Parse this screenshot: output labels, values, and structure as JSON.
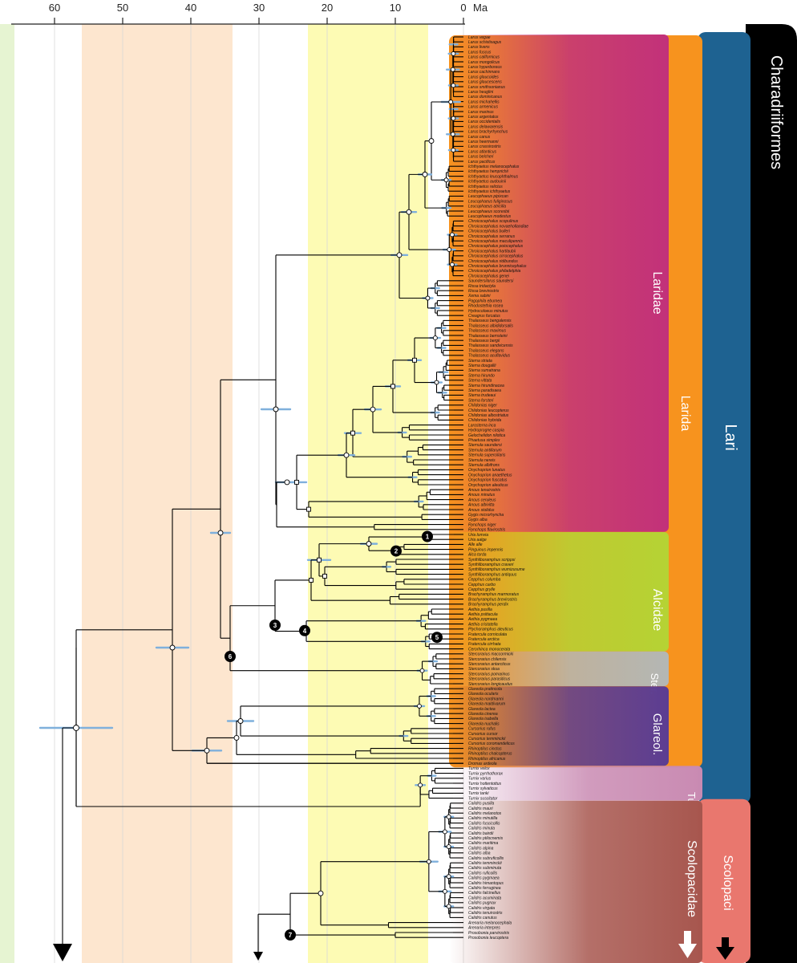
{
  "axis": {
    "unit": "Ma",
    "ticks": [
      "60",
      "50",
      "40",
      "30",
      "20",
      "10",
      "0"
    ]
  },
  "clades": {
    "order": "Charadriiformes",
    "suborders": [
      {
        "name": "Lari",
        "color": "#1e6291"
      },
      {
        "name": "Scolopaci",
        "color": "#e9776e"
      }
    ],
    "infraorders": [
      {
        "name": "Larida",
        "color": "#f7931e"
      }
    ],
    "families": [
      {
        "name": "Laridae",
        "color": "#c2317a"
      },
      {
        "name": "Alcidae",
        "color": "#b5d334"
      },
      {
        "name": "Ster.",
        "color": "#b4b7b4"
      },
      {
        "name": "Glareol.",
        "color": "#5c3d92"
      },
      {
        "name": "Tur.",
        "color": "#c98ab2"
      },
      {
        "name": "Scolopacidae",
        "color": "#a7564e"
      }
    ]
  },
  "nodes": [
    "1",
    "2",
    "3",
    "4",
    "5",
    "6",
    "7"
  ],
  "tips": [
    "Larus vegae",
    "Larus schistisagus",
    "Larus livens",
    "Larus fuscus",
    "Larus californicus",
    "Larus mongolicus",
    "Larus hyperboreus",
    "Larus cachinnans",
    "Larus glaucoides",
    "Larus glaucescens",
    "Larus smithsonianus",
    "Larus heuglini",
    "Larus dominicanus",
    "Larus michahellis",
    "Larus armenicus",
    "Larus marinus",
    "Larus argentatus",
    "Larus occidentalis",
    "Larus delawarensis",
    "Larus brachyrhynchus",
    "Larus canus",
    "Larus heermanni",
    "Larus crassirostris",
    "Larus atlanticus",
    "Larus belcheri",
    "Larus pacificus",
    "Ichthyaetus melanocephalus",
    "Ichthyaetus hemprichii",
    "Ichthyaetus leucophthalmus",
    "Ichthyaetus audouinii",
    "Ichthyaetus relictus",
    "Ichthyaetus ichthyaetus",
    "Leucophaeus pipixcan",
    "Leucophaeus fuliginosus",
    "Leucophaeus atricilla",
    "Leucophaeus scoresbii",
    "Leucophaeus modestus",
    "Chroicocephalus scopulinus",
    "Chroicocephalus novaehollandiae",
    "Chroicocephalus bulleri",
    "Chroicocephalus serranus",
    "Chroicocephalus maculipennis",
    "Chroicocephalus poiocephalus",
    "Chroicocephalus hartlaubii",
    "Chroicocephalus cirrocephalus",
    "Chroicocephalus ridibundus",
    "Chroicocephalus brunnicephalus",
    "Chroicocephalus philadelphia",
    "Chroicocephalus genei",
    "Saundersilarus saundersi",
    "Rissa tridactyla",
    "Rissa brevirostris",
    "Xema sabini",
    "Pagophila eburnea",
    "Rhodostethia rosea",
    "Hydrocoloeus minutus",
    "Creagrus furcatus",
    "Thalasseus bengalensis",
    "Thalasseus albididorsalis",
    "Thalasseus maximus",
    "Thalasseus bernsteini",
    "Thalasseus bergii",
    "Thalasseus sandvicensis",
    "Thalasseus elegans",
    "Thalasseus acuflavidus",
    "Sterna striata",
    "Sterna dougallii",
    "Sterna sumatrana",
    "Sterna hirundo",
    "Sterna vittata",
    "Sterna hirundinacea",
    "Sterna paradisaea",
    "Sterna trudeaui",
    "Sterna forsteri",
    "Chlidonias niger",
    "Chlidonias leucopterus",
    "Chlidonias albostriatus",
    "Chlidonias hybrida",
    "Larosterna inca",
    "Hydroprogne caspia",
    "Gelochelidon nilotica",
    "Phaetusa simplex",
    "Sternula saundersi",
    "Sternula antillarum",
    "Sternula superciliaris",
    "Sternula nereis",
    "Sternula albifrons",
    "Onychoprion lunatus",
    "Onychoprion anaethetus",
    "Onychoprion fuscatus",
    "Onychoprion aleuticus",
    "Anous tenuirostris",
    "Anous minutus",
    "Anous ceruleus",
    "Anous albivitta",
    "Anous stolidus",
    "Gygis microrhyncha",
    "Gygis alba",
    "Rynchops niger",
    "Rynchops flavirostris",
    "Uria lomvia",
    "Uria aalge",
    "Alle alle",
    "Pinguinus impennis",
    "Alca torda",
    "Synthliboramphus scrippsi",
    "Synthliboramphus craveri",
    "Synthliboramphus wumizusume",
    "Synthliboramphus antiquus",
    "Cepphus columba",
    "Cepphus carbo",
    "Cepphus grylle",
    "Brachyramphus marmoratus",
    "Brachyramphus brevirostris",
    "Brachyramphus perdix",
    "Aethia pusilla",
    "Aethia psittacula",
    "Aethia pygmaea",
    "Aethia cristatella",
    "Ptychoramphus aleuticus",
    "Fratercula corniculata",
    "Fratercula arctica",
    "Fratercula cirrhata",
    "Cerorhinca monocerata",
    "Stercorarius maccormicki",
    "Stercorarius chilensis",
    "Stercorarius antarcticus",
    "Stercorarius skua",
    "Stercorarius pomarinus",
    "Stercorarius parasiticus",
    "Stercorarius longicaudus",
    "Glareola pratincola",
    "Glareola ocularis",
    "Glareola nordmanni",
    "Glareola maldivarum",
    "Glareola lactea",
    "Glareola cinerea",
    "Glareola isabella",
    "Glareola nuchalis",
    "Cursorius rufus",
    "Cursorius cursor",
    "Cursorius temminckii",
    "Cursorius coromandelicus",
    "Rhinoptilus cinctus",
    "Rhinoptilus chalcopterus",
    "Rhinoptilus africanus",
    "Dromas ardeola",
    "Turnix velox",
    "Turnix pyrrhothorax",
    "Turnix varius",
    "Turnix hottentottus",
    "Turnix sylvaticus",
    "Turnix tanki",
    "Turnix suscitator",
    "Calidris pusilla",
    "Calidris mauri",
    "Calidris melanotos",
    "Calidris minutilla",
    "Calidris fuscicollis",
    "Calidris minuta",
    "Calidris bairdii",
    "Calidris ptilocnemis",
    "Calidris maritima",
    "Calidris alpina",
    "Calidris alba",
    "Calidris subruficollis",
    "Calidris temminckii",
    "Calidris subminuta",
    "Calidris ruficollis",
    "Calidris pygmaea",
    "Calidris himantopus",
    "Calidris ferruginea",
    "Calidris falcinellus",
    "Calidris acuminata",
    "Calidris pugnax",
    "Calidris virgata",
    "Calidris tenuirostris",
    "Calidris canutus",
    "Arenaria melanocephala",
    "Arenaria interpres",
    "Prosobonia parvirostris",
    "Prosobonia leucoptera"
  ]
}
